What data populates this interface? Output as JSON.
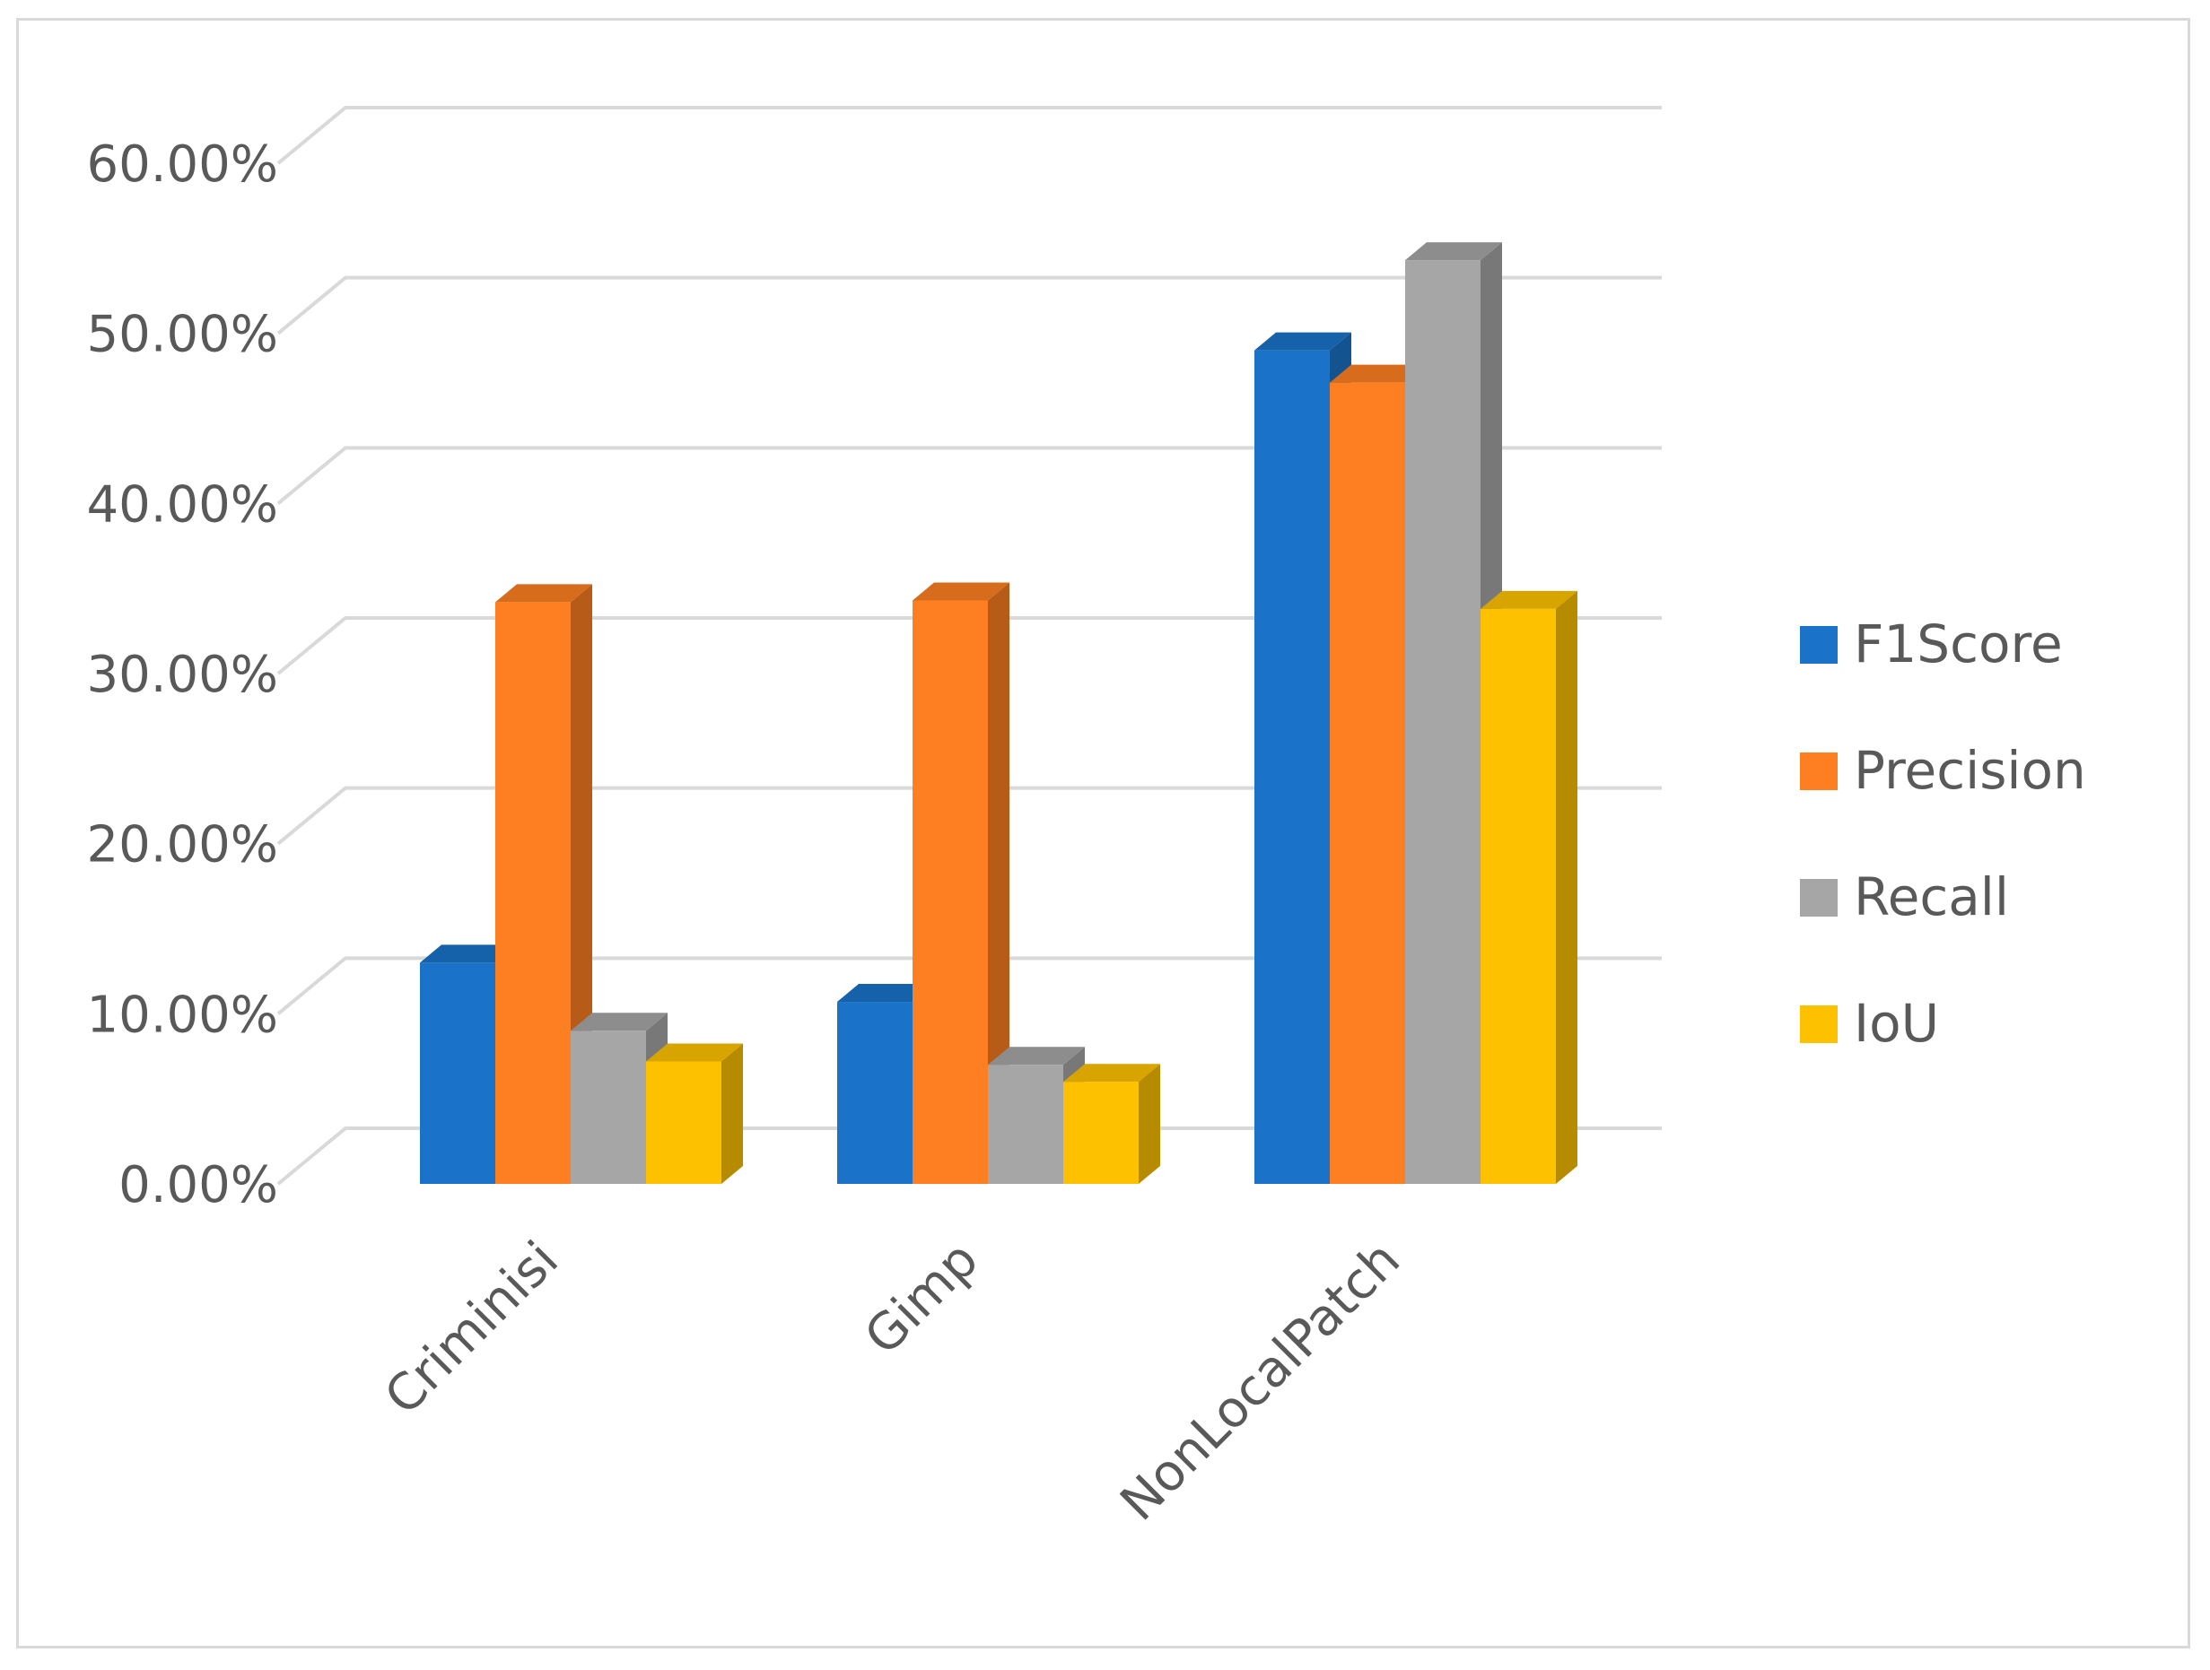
{
  "chart_data": {
    "type": "bar",
    "three_d": true,
    "title": "",
    "xlabel": "",
    "ylabel": "",
    "categories": [
      "Criminisi",
      "Gimp",
      "NonLocalPatch"
    ],
    "series": [
      {
        "name": "F1Score",
        "color": "#1a73c8",
        "values": [
          0.13,
          0.107,
          0.49
        ]
      },
      {
        "name": "Precision",
        "color": "#fd7f22",
        "values": [
          0.342,
          0.343,
          0.471
        ]
      },
      {
        "name": "Recall",
        "color": "#a6a6a6",
        "values": [
          0.09,
          0.07,
          0.543
        ]
      },
      {
        "name": "IoU",
        "color": "#fdc100",
        "values": [
          0.072,
          0.06,
          0.338
        ]
      }
    ],
    "ylim": [
      0,
      0.6
    ],
    "yticks": [
      0,
      0.1,
      0.2,
      0.3,
      0.4,
      0.5,
      0.6
    ],
    "ytick_labels": [
      "0.00%",
      "10.00%",
      "20.00%",
      "30.00%",
      "40.00%",
      "50.00%",
      "60.00%"
    ],
    "grid": true,
    "legend_position": "right"
  }
}
